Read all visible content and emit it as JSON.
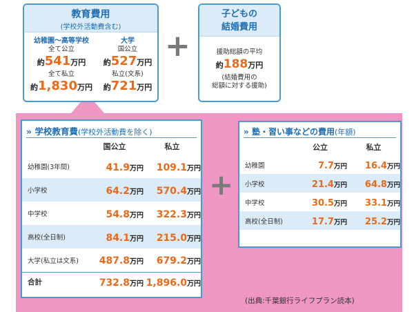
{
  "education": {
    "title": "教育費用",
    "subtitle": "(学校外活動費含む)",
    "k12": {
      "header": "幼稚園〜高等学校",
      "public_label": "全て公立",
      "public_prefix": "約",
      "public_value": "541",
      "private_label": "全て私立",
      "private_prefix": "約",
      "private_value": "1,830"
    },
    "univ": {
      "header": "大学",
      "public_label": "国公立",
      "public_prefix": "約",
      "public_value": "527",
      "private_label": "私立(文系)",
      "private_prefix": "約",
      "private_value": "721"
    },
    "unit": "万円"
  },
  "wedding": {
    "title_line1": "子どもの",
    "title_line2": "結婚費用",
    "avg_label": "援助総額の平均",
    "prefix": "約",
    "value": "188",
    "unit": "万円",
    "note_line1": "(結婚費用の",
    "note_line2": "総額に対する援助)"
  },
  "plus_sign": "+",
  "school_table": {
    "title_marker": "»",
    "title": "学校教育費",
    "title_note": "(学校外活動費を除く)",
    "col_public": "国公立",
    "col_private": "私立",
    "unit": "万円",
    "rows": [
      {
        "label": "幼稚園(3年間)",
        "public": "41.9",
        "private": "109.1"
      },
      {
        "label": "小学校",
        "public": "64.2",
        "private": "570.4"
      },
      {
        "label": "中学校",
        "public": "54.8",
        "private": "322.3"
      },
      {
        "label": "高校(全日制)",
        "public": "84.1",
        "private": "215.0"
      },
      {
        "label": "大学(私立は文系)",
        "public": "487.8",
        "private": "679.2"
      }
    ],
    "total": {
      "label": "合計",
      "public": "732.8",
      "private": "1,896.0"
    }
  },
  "juku_table": {
    "title_marker": "»",
    "title": "塾・習い事などの費用",
    "title_note": "(年額)",
    "col_public": "公立",
    "col_private": "私立",
    "unit": "万円",
    "rows": [
      {
        "label": "幼稚園",
        "public": "7.7",
        "private": "16.4"
      },
      {
        "label": "小学校",
        "public": "21.4",
        "private": "64.8"
      },
      {
        "label": "中学校",
        "public": "30.5",
        "private": "33.1"
      },
      {
        "label": "高校(全日制)",
        "public": "17.7",
        "private": "25.2"
      }
    ]
  },
  "source": "(出典:千葉銀行ライフプラン読本)",
  "colors": {
    "accent_blue": "#4b9bd3",
    "value_orange": "#ea6a1a",
    "panel_pink": "#ef96c4",
    "header_bg": "#dcebf8"
  }
}
